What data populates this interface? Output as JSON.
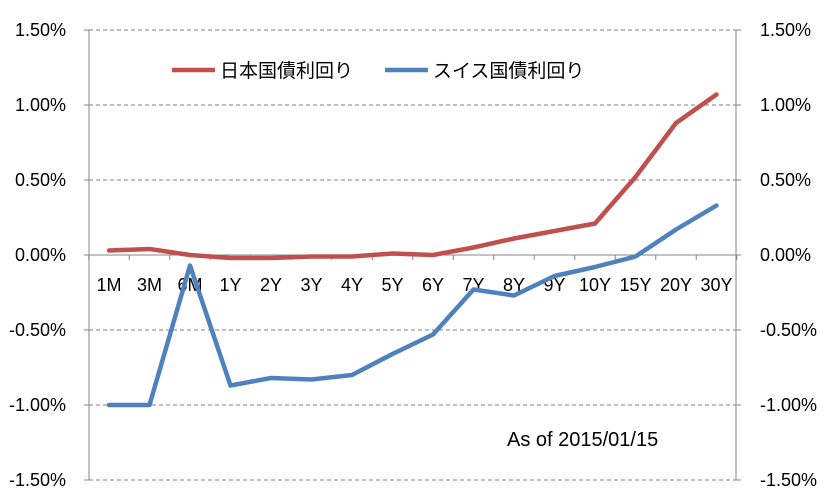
{
  "chart_data": {
    "type": "line",
    "categories": [
      "1M",
      "3M",
      "6M",
      "1Y",
      "2Y",
      "3Y",
      "4Y",
      "5Y",
      "6Y",
      "7Y",
      "8Y",
      "9Y",
      "10Y",
      "15Y",
      "20Y",
      "30Y"
    ],
    "series": [
      {
        "name": "日本国債利回り",
        "color": "#C0504D",
        "values": [
          0.03,
          0.04,
          0.0,
          -0.02,
          -0.02,
          -0.01,
          -0.01,
          0.01,
          0.0,
          0.05,
          0.11,
          0.16,
          0.21,
          0.52,
          0.88,
          1.07
        ]
      },
      {
        "name": "スイス国債利回り",
        "color": "#4F81BD",
        "values": [
          -1.0,
          -1.0,
          -0.07,
          -0.87,
          -0.82,
          -0.83,
          -0.8,
          -0.66,
          -0.53,
          -0.23,
          -0.27,
          -0.14,
          -0.08,
          -0.01,
          0.17,
          0.33
        ]
      }
    ],
    "ylim": [
      -1.5,
      1.5
    ],
    "yticks": [
      -1.5,
      -1.0,
      -0.5,
      0.0,
      0.5,
      1.0,
      1.5
    ],
    "ytick_labels": [
      "-1.50%",
      "-1.00%",
      "-0.50%",
      "0.00%",
      "0.50%",
      "1.00%",
      "1.50%"
    ],
    "secondary_axis": "right (same scale)",
    "grid": "horizontal dashed",
    "legend_position": "top-left",
    "annotation": "As of 2015/01/15"
  }
}
